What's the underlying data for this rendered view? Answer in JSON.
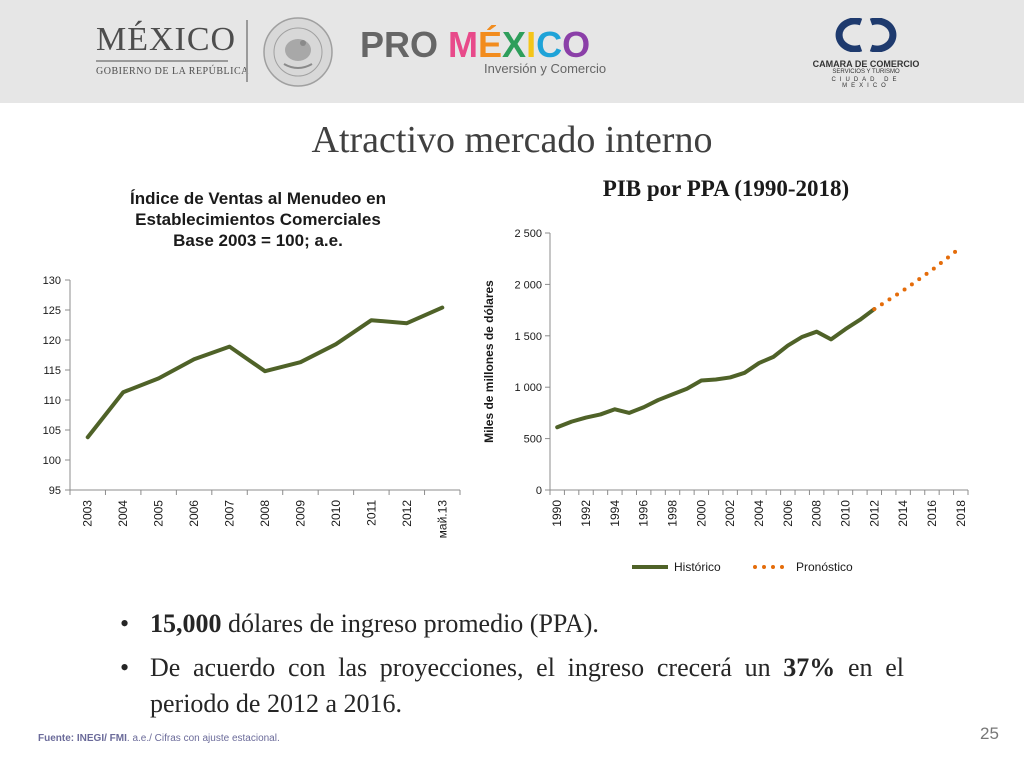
{
  "header": {
    "mexico_logo": {
      "title": "MÉXICO",
      "subtitle": "GOBIERNO DE LA REPÚBLICA"
    },
    "seal_text": "ESTADOS UNIDOS MEXICANOS",
    "promexico_logo": {
      "pro": "PRO",
      "mexico": "MÉXICO",
      "tagline": "Inversión y Comercio",
      "letter_colors": [
        "#e84a8a",
        "#f28c1e",
        "#2e9e5b",
        "#f5c518",
        "#1fa3d8",
        "#8b3fa8"
      ]
    },
    "camara_logo": {
      "name": "CAMARA DE COMERCIO",
      "sub": "SERVICIOS Y TURISMO",
      "city": "CIUDAD DE MEXICO",
      "color": "#1e3a6e"
    }
  },
  "page_title": "Atractivo mercado interno",
  "charts": {
    "left_title": [
      "Índice de Ventas al Menudeo en",
      "Establecimientos Comerciales",
      "Base 2003 = 100; a.e."
    ],
    "right_title": "PIB por PPA (1990-2018)"
  },
  "chart_data": [
    {
      "type": "line",
      "title": "Índice de Ventas al Menudeo en Establecimientos Comerciales Base 2003 = 100; a.e.",
      "categories": [
        "2003",
        "2004",
        "2005",
        "2006",
        "2007",
        "2008",
        "2009",
        "2010",
        "2011",
        "2012",
        "май.13"
      ],
      "values": [
        103.8,
        111.3,
        113.6,
        116.8,
        118.9,
        114.8,
        116.3,
        119.3,
        123.3,
        122.8,
        125.4
      ],
      "yticks": [
        "95",
        "100",
        "105",
        "110",
        "115",
        "120",
        "125",
        "130"
      ],
      "ylim": [
        95,
        130
      ],
      "color": "#4f6228",
      "grid": false
    },
    {
      "type": "line",
      "title": "PIB por PPA (1990-2018)",
      "ylabel": "Miles de millones de dólares",
      "x": [
        1990,
        1991,
        1992,
        1993,
        1994,
        1995,
        1996,
        1997,
        1998,
        1999,
        2000,
        2001,
        2002,
        2003,
        2004,
        2005,
        2006,
        2007,
        2008,
        2009,
        2010,
        2011,
        2012,
        2013,
        2014,
        2015,
        2016,
        2017,
        2018
      ],
      "xtick_labels": [
        "1990",
        "1992",
        "1994",
        "1996",
        "1998",
        "2000",
        "2002",
        "2004",
        "2006",
        "2008",
        "2010",
        "2012",
        "2014",
        "2016",
        "2018"
      ],
      "yticks": [
        "0",
        "500",
        "1 000",
        "1 500",
        "2 000",
        "2 500"
      ],
      "ylim": [
        0,
        2500
      ],
      "legend_position": "bottom",
      "series": [
        {
          "name": "Histórico",
          "style": "solid",
          "color": "#4f6228",
          "x": [
            1990,
            1991,
            1992,
            1993,
            1994,
            1995,
            1996,
            1997,
            1998,
            1999,
            2000,
            2001,
            2002,
            2003,
            2004,
            2005,
            2006,
            2007,
            2008,
            2009,
            2010,
            2011,
            2012
          ],
          "values": [
            610,
            665,
            705,
            735,
            785,
            750,
            805,
            875,
            930,
            985,
            1065,
            1075,
            1095,
            1140,
            1235,
            1295,
            1405,
            1490,
            1540,
            1465,
            1565,
            1655,
            1760
          ]
        },
        {
          "name": "Pronóstico",
          "style": "dotted",
          "color": "#e46c0a",
          "x": [
            2012,
            2013,
            2014,
            2015,
            2016,
            2017,
            2018
          ],
          "values": [
            1760,
            1850,
            1940,
            2040,
            2140,
            2250,
            2360
          ]
        }
      ]
    }
  ],
  "bullets": [
    {
      "bold": "15,000",
      "rest": " dólares de ingreso promedio (PPA)."
    },
    {
      "pre": "De acuerdo con las proyecciones,  el ingreso crecerá un ",
      "bold": "37%",
      "rest": " en el periodo de 2012 a 2016."
    }
  ],
  "footer": {
    "source_bold": "Fuente: INEGI/ FMI",
    "source_rest": ". a.e./ Cifras con ajuste estacional."
  },
  "page_number": "25"
}
